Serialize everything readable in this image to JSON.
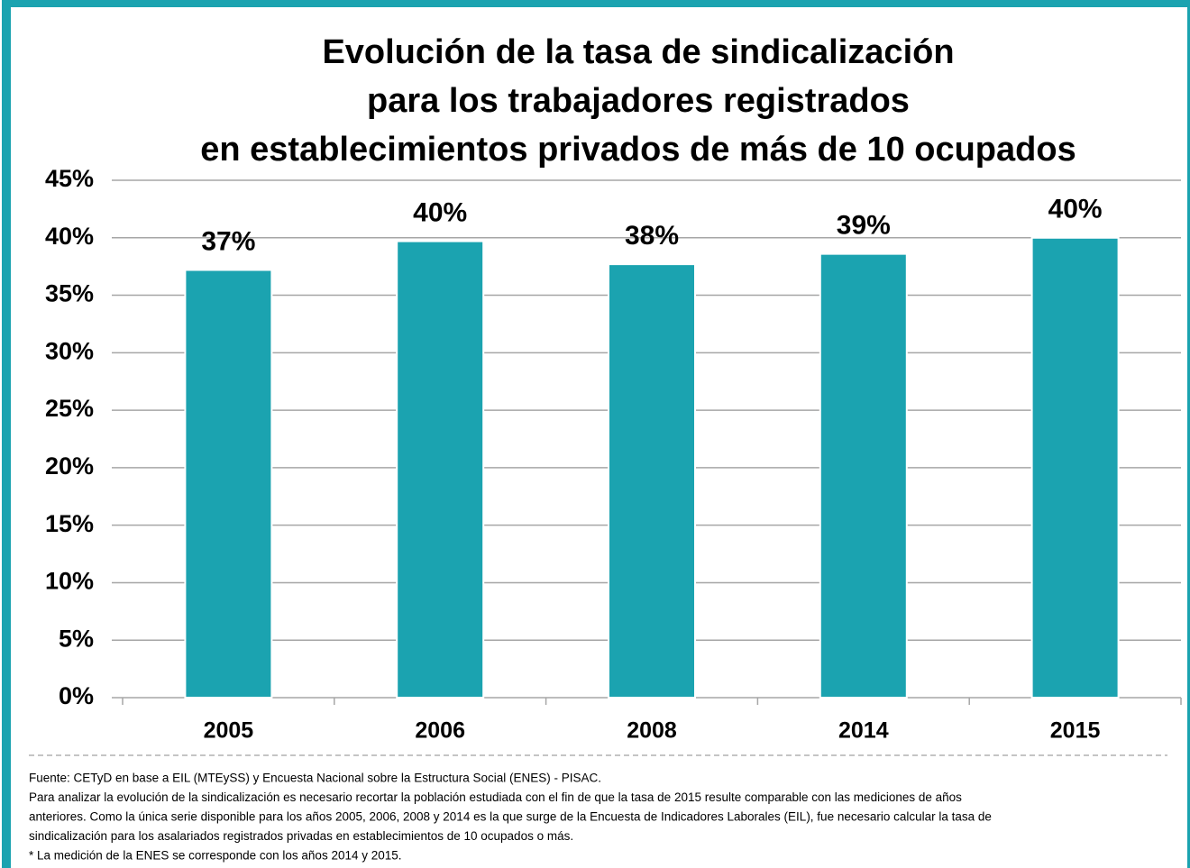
{
  "chart_data": {
    "type": "bar",
    "title": [
      "Evolución de la tasa de sindicalización",
      "para los trabajadores registrados",
      "en establecimientos privados de más de 10 ocupados"
    ],
    "categories": [
      "2005",
      "2006",
      "2008",
      "2014",
      "2015"
    ],
    "values": [
      37.2,
      39.7,
      37.7,
      38.6,
      40.0
    ],
    "value_labels": [
      "37%",
      "40%",
      "38%",
      "39%",
      "40%"
    ],
    "color": "#1ba3b0",
    "ylim": [
      0,
      45
    ],
    "yticks": [
      {
        "value": 0,
        "label": "0%"
      },
      {
        "value": 5,
        "label": "5%"
      },
      {
        "value": 10,
        "label": "10%"
      },
      {
        "value": 15,
        "label": "15%"
      },
      {
        "value": 20,
        "label": "20%"
      },
      {
        "value": 25,
        "label": "25%"
      },
      {
        "value": 30,
        "label": "30%"
      },
      {
        "value": 35,
        "label": "35%"
      },
      {
        "value": 40,
        "label": "40%"
      },
      {
        "value": 45,
        "label": "45%"
      }
    ],
    "grid": true,
    "notes": [
      "Fuente: CETyD en base a EIL (MTEySS) y  Encuesta Nacional sobre la Estructura Social (ENES) - PISAC.",
      "Para analizar la evolución de la sindicalización es necesario recortar la población estudiada con el fin de que la tasa de 2015 resulte comparable con las mediciones de años",
      "anteriores. Como la única serie disponible para los años 2005, 2006, 2008 y 2014 es la que surge de la Encuesta de Indicadores Laborales (EIL), fue necesario calcular la tasa de",
      "sindicalización para los asalariados registrados privadas en establecimientos  de 10 ocupados o más.",
      "* La medición de la ENES se corresponde con los años 2014 y 2015."
    ]
  }
}
